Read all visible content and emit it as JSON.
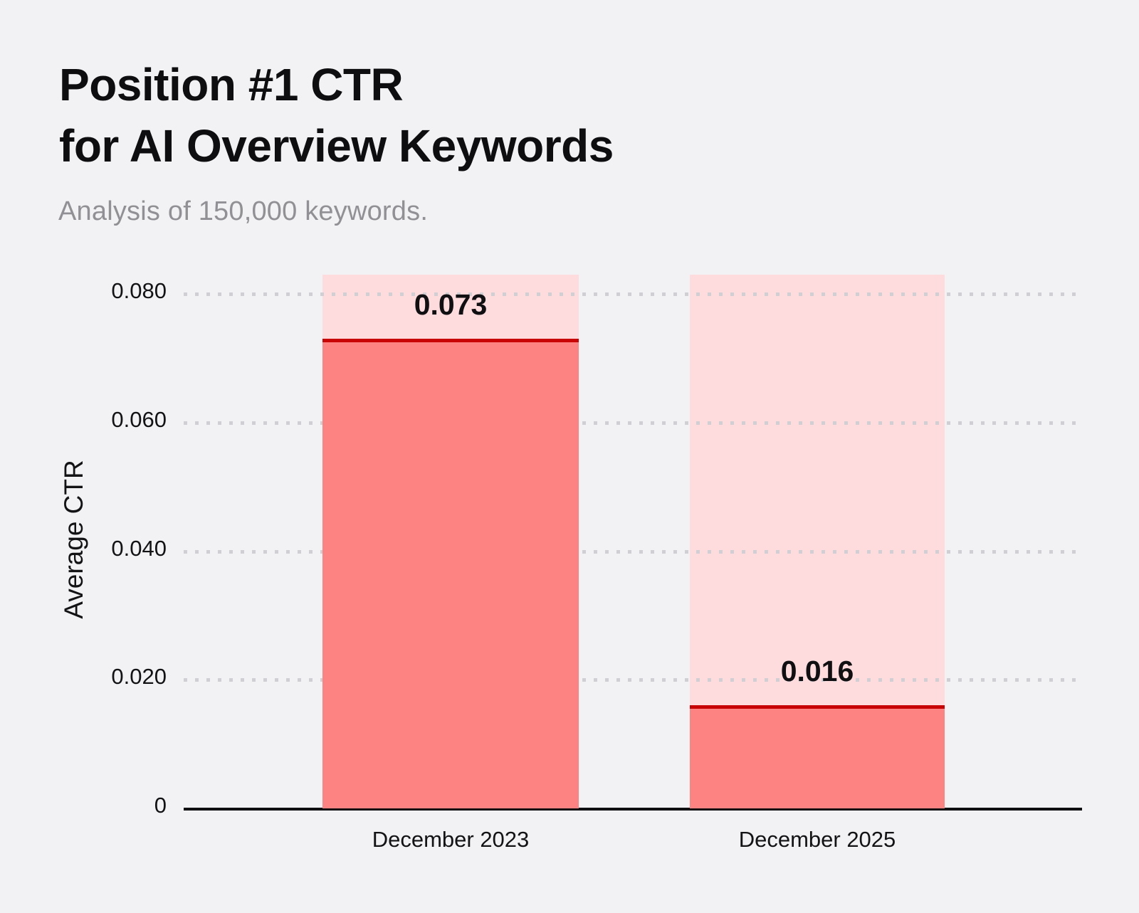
{
  "title": {
    "line1": "Position #1 CTR",
    "line2": "for AI Overview Keywords"
  },
  "subtitle": "Analysis of 150,000 keywords.",
  "chart_data": {
    "type": "bar",
    "title": "Position #1 CTR for AI Overview Keywords",
    "subtitle": "Analysis of 150,000 keywords.",
    "categories": [
      "December 2023",
      "December 2025"
    ],
    "values": [
      0.073,
      0.016
    ],
    "value_labels": [
      "0.073",
      "0.016"
    ],
    "xlabel": "",
    "ylabel": "Average CTR",
    "ylim": [
      0,
      0.083
    ],
    "yticks": [
      0,
      0.02,
      0.04,
      0.06,
      0.08
    ],
    "ytick_labels": [
      "0",
      "0.020",
      "0.040",
      "0.060",
      "0.080"
    ],
    "grid": "horizontal-dotted",
    "legend": "none",
    "bar_style": "full-height light track with darker fill up to value, dark red marker line at value top, value label printed above marker inside track"
  },
  "colors": {
    "background": "#f2f2f4",
    "bar_fill": "#fd8383",
    "bar_track": "#fedcde",
    "marker_line": "#c80404",
    "grid_dot": "#cfcfd4",
    "axis": "#101012",
    "title_text": "#0e0e10",
    "subtitle_text": "#919195",
    "tick_text": "#131315"
  }
}
